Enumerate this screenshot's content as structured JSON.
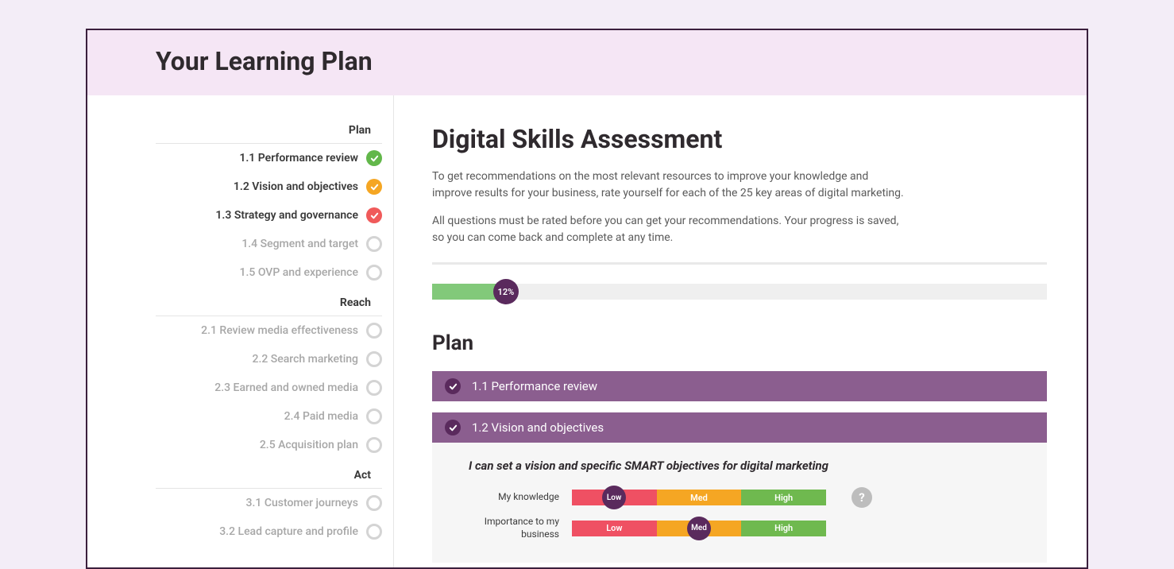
{
  "header": {
    "title": "Your Learning Plan"
  },
  "sidebar": {
    "sections": [
      {
        "title": "Plan",
        "items": [
          {
            "label": "1.1 Performance review",
            "status": "green"
          },
          {
            "label": "1.2 Vision and objectives",
            "status": "orange"
          },
          {
            "label": "1.3 Strategy and governance",
            "status": "red"
          },
          {
            "label": "1.4 Segment and target",
            "status": "empty"
          },
          {
            "label": "1.5 OVP and experience",
            "status": "empty"
          }
        ]
      },
      {
        "title": "Reach",
        "items": [
          {
            "label": "2.1 Review media effectiveness",
            "status": "empty"
          },
          {
            "label": "2.2 Search marketing",
            "status": "empty"
          },
          {
            "label": "2.3 Earned and owned media",
            "status": "empty"
          },
          {
            "label": "2.4 Paid media",
            "status": "empty"
          },
          {
            "label": "2.5 Acquisition plan",
            "status": "empty"
          }
        ]
      },
      {
        "title": "Act",
        "items": [
          {
            "label": "3.1 Customer journeys",
            "status": "empty"
          },
          {
            "label": "3.2 Lead capture and profile",
            "status": "empty"
          }
        ]
      }
    ]
  },
  "main": {
    "title": "Digital Skills Assessment",
    "intro1": "To get recommendations on the most relevant resources to improve your knowledge and improve results for your business, rate yourself for each of the 25 key areas of digital marketing.",
    "intro2": "All questions must be rated before you can get your recommendations. Your progress is saved, so you can come back and complete at any time.",
    "progress": {
      "percent": 12,
      "label": "12%",
      "fill_color": "#82c97a",
      "track_color": "#efefef",
      "badge_color": "#5a2a5d"
    },
    "section_title": "Plan",
    "accordions": [
      {
        "title": "1.1 Performance review",
        "expanded": false
      },
      {
        "title": "1.2 Vision and objectives",
        "expanded": true,
        "prompt": "I can set a vision and specific SMART objectives for digital marketing",
        "ratings": [
          {
            "label": "My knowledge",
            "selected": "Low",
            "selected_index": 0
          },
          {
            "label": "Importance to my business",
            "selected": "Med",
            "selected_index": 1
          }
        ]
      }
    ],
    "segments": {
      "low": {
        "label": "Low",
        "color": "#ef5063"
      },
      "med": {
        "label": "Med",
        "color": "#f5a623"
      },
      "high": {
        "label": "High",
        "color": "#6fb94f"
      }
    },
    "help_label": "?"
  },
  "colors": {
    "page_bg": "#f3edf7",
    "window_border": "#3a1f3d",
    "header_bg": "#f5e6f5",
    "accordion_bg": "#8b5e8f",
    "badge_bg": "#5a2a5d",
    "status_green": "#62b74a",
    "status_orange": "#f5a623",
    "status_red": "#f05a5a",
    "status_empty_border": "#d4d4d4"
  }
}
